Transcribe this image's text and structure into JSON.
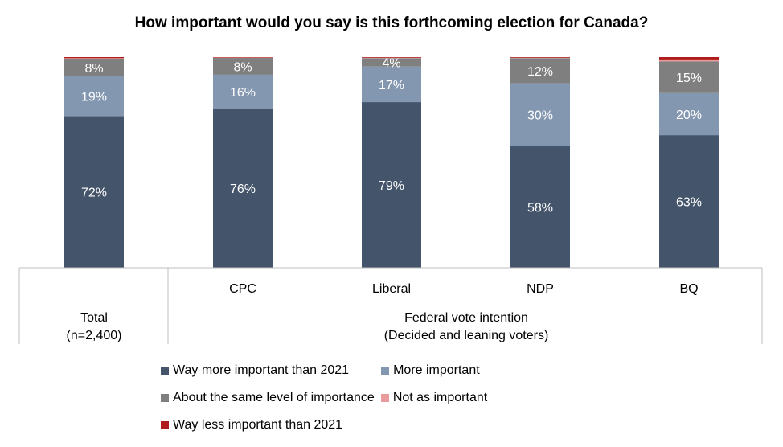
{
  "chart_data": {
    "type": "bar",
    "stacked": true,
    "title": "How important would you say is this forthcoming election for Canada?",
    "categories": [
      "Total",
      "CPC",
      "Liberal",
      "NDP",
      "BQ"
    ],
    "group_labels": {
      "total": [
        "Total",
        "(n=2,400)"
      ],
      "federal": [
        "Federal vote intention",
        "(Decided and leaning voters)"
      ]
    },
    "series": [
      {
        "name": "Way more important than 2021",
        "color": "#44546a",
        "values": [
          72,
          76,
          79,
          58,
          63
        ],
        "labels": [
          "72%",
          "76%",
          "79%",
          "58%",
          "63%"
        ]
      },
      {
        "name": "More important",
        "color": "#8497b0",
        "values": [
          19,
          16,
          17,
          30,
          20
        ],
        "labels": [
          "19%",
          "16%",
          "17%",
          "30%",
          "20%"
        ]
      },
      {
        "name": "About the same level of importance",
        "color": "#7f7f7f",
        "values": [
          8,
          8,
          4,
          12,
          15
        ],
        "labels": [
          "8%",
          "8%",
          "4%",
          "12%",
          "15%"
        ]
      },
      {
        "name": "Not as important",
        "color": "#e89c9c",
        "values": [
          0.5,
          0.2,
          0.2,
          0.2,
          0.6
        ],
        "labels": [
          "",
          "",
          "",
          "",
          ""
        ]
      },
      {
        "name": "Way less important than 2021",
        "color": "#b01c1c",
        "values": [
          0.5,
          0.2,
          0.3,
          0.3,
          1.5
        ],
        "labels": [
          "",
          "",
          "",
          "",
          ""
        ]
      }
    ],
    "ylim": [
      0,
      100
    ],
    "grid": false,
    "legend_position": "bottom"
  }
}
